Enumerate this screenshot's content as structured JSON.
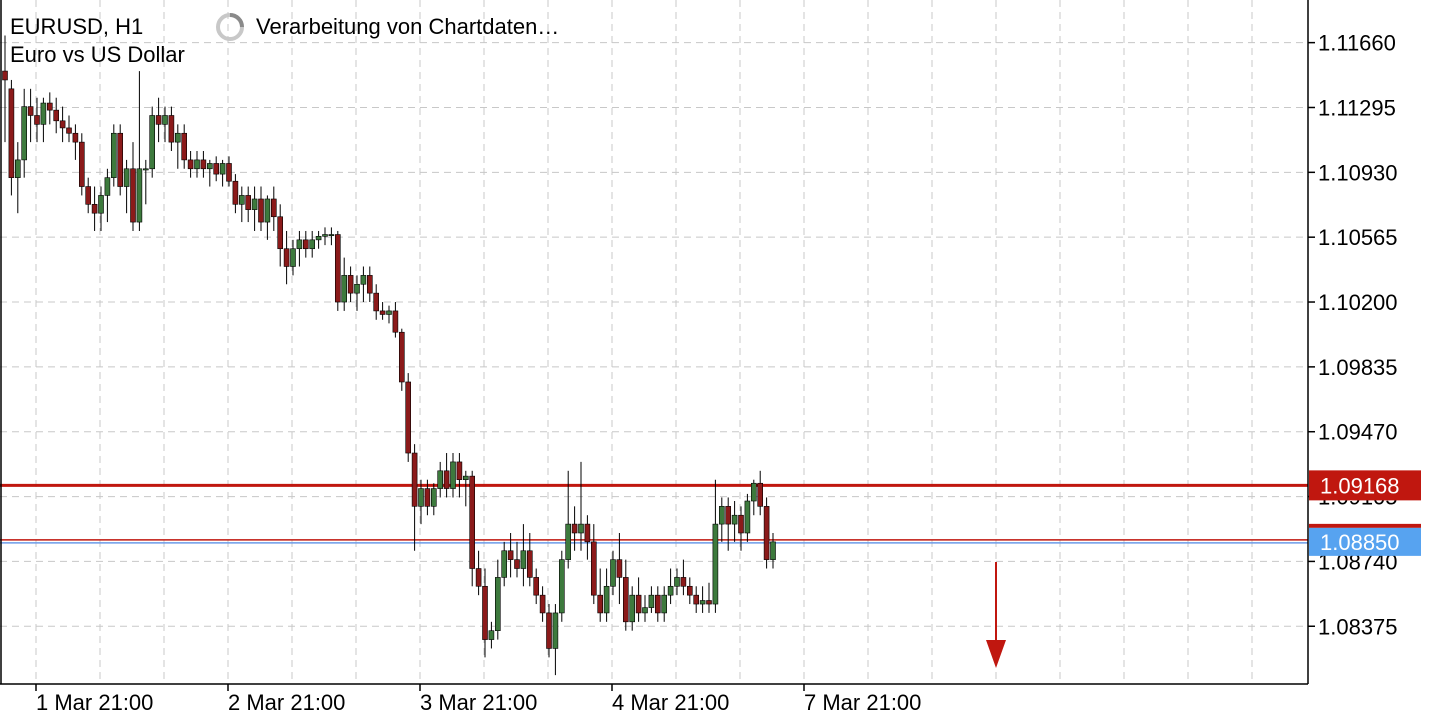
{
  "header": {
    "symbol_timeframe": "EURUSD, H1",
    "description": "Euro vs US Dollar",
    "status": "Verarbeitung von Chartdaten…"
  },
  "colors": {
    "bull": "#3d7a3d",
    "bear": "#8b1a1a",
    "wick": "#000000",
    "grid": "#c8c8c8",
    "sell_line": "#c0170f",
    "buy_line": "#6c9be8",
    "buy_badge": "#57a3f0",
    "arrow": "#c0170f"
  },
  "chart_data": {
    "type": "candlestick",
    "symbol": "EURUSD",
    "timeframe": "H1",
    "ylim": [
      1.0805,
      1.119
    ],
    "y_ticks": [
      "1.11660",
      "1.11295",
      "1.10930",
      "1.10565",
      "1.10200",
      "1.09835",
      "1.09470",
      "1.09105",
      "1.08740",
      "1.08375"
    ],
    "x_labels": [
      "1 Mar 21:00",
      "2 Mar 21:00",
      "3 Mar 21:00",
      "4 Mar 21:00",
      "7 Mar 21:00"
    ],
    "price_lines": [
      {
        "name": "bid",
        "value": "1.09168"
      },
      {
        "name": "ask",
        "value": "1.08850"
      }
    ],
    "arrow_direction": "down",
    "candles": [
      [
        1.115,
        1.117,
        1.111,
        1.1145
      ],
      [
        1.114,
        1.1145,
        1.108,
        1.109
      ],
      [
        1.109,
        1.111,
        1.107,
        1.11
      ],
      [
        1.11,
        1.114,
        1.109,
        1.113
      ],
      [
        1.113,
        1.114,
        1.111,
        1.1125
      ],
      [
        1.1125,
        1.1135,
        1.111,
        1.112
      ],
      [
        1.112,
        1.1135,
        1.111,
        1.1132
      ],
      [
        1.1132,
        1.1138,
        1.112,
        1.1128
      ],
      [
        1.1128,
        1.1135,
        1.1115,
        1.1122
      ],
      [
        1.1122,
        1.113,
        1.111,
        1.1118
      ],
      [
        1.1118,
        1.1125,
        1.111,
        1.1115
      ],
      [
        1.1115,
        1.112,
        1.11,
        1.111
      ],
      [
        1.111,
        1.1115,
        1.108,
        1.1085
      ],
      [
        1.1085,
        1.109,
        1.107,
        1.1075
      ],
      [
        1.1075,
        1.1085,
        1.106,
        1.107
      ],
      [
        1.107,
        1.1085,
        1.106,
        1.108
      ],
      [
        1.108,
        1.1095,
        1.1065,
        1.109
      ],
      [
        1.109,
        1.112,
        1.1085,
        1.1115
      ],
      [
        1.1115,
        1.112,
        1.108,
        1.1085
      ],
      [
        1.1085,
        1.11,
        1.107,
        1.1095
      ],
      [
        1.1095,
        1.111,
        1.106,
        1.1065
      ],
      [
        1.1065,
        1.115,
        1.106,
        1.1095
      ],
      [
        1.1095,
        1.11,
        1.1075,
        1.1095
      ],
      [
        1.1095,
        1.113,
        1.109,
        1.1125
      ],
      [
        1.1125,
        1.1135,
        1.111,
        1.112
      ],
      [
        1.112,
        1.113,
        1.111,
        1.1125
      ],
      [
        1.1125,
        1.113,
        1.1105,
        1.111
      ],
      [
        1.111,
        1.112,
        1.1095,
        1.1115
      ],
      [
        1.1115,
        1.112,
        1.1095,
        1.11
      ],
      [
        1.11,
        1.1105,
        1.109,
        1.1095
      ],
      [
        1.1095,
        1.1105,
        1.109,
        1.11
      ],
      [
        1.11,
        1.1105,
        1.109,
        1.1095
      ],
      [
        1.1095,
        1.11,
        1.1085,
        1.1098
      ],
      [
        1.1098,
        1.1102,
        1.1088,
        1.1092
      ],
      [
        1.1092,
        1.11,
        1.1085,
        1.1098
      ],
      [
        1.1098,
        1.1102,
        1.1085,
        1.1088
      ],
      [
        1.1088,
        1.1092,
        1.107,
        1.1075
      ],
      [
        1.1075,
        1.1085,
        1.1065,
        1.108
      ],
      [
        1.108,
        1.1085,
        1.1065,
        1.1072
      ],
      [
        1.1072,
        1.1085,
        1.106,
        1.1078
      ],
      [
        1.1078,
        1.1085,
        1.106,
        1.1065
      ],
      [
        1.1065,
        1.108,
        1.1055,
        1.1078
      ],
      [
        1.1078,
        1.1085,
        1.106,
        1.1068
      ],
      [
        1.1068,
        1.1075,
        1.104,
        1.105
      ],
      [
        1.105,
        1.106,
        1.103,
        1.104
      ],
      [
        1.104,
        1.1055,
        1.1035,
        1.105
      ],
      [
        1.105,
        1.106,
        1.104,
        1.1055
      ],
      [
        1.1055,
        1.106,
        1.1045,
        1.105
      ],
      [
        1.105,
        1.106,
        1.1045,
        1.1055
      ],
      [
        1.1055,
        1.106,
        1.105,
        1.1057
      ],
      [
        1.1057,
        1.1062,
        1.1052,
        1.1058
      ],
      [
        1.1058,
        1.1062,
        1.1052,
        1.1058
      ],
      [
        1.1058,
        1.106,
        1.1015,
        1.102
      ],
      [
        1.102,
        1.1045,
        1.1015,
        1.1035
      ],
      [
        1.1035,
        1.104,
        1.102,
        1.1025
      ],
      [
        1.1025,
        1.1035,
        1.1015,
        1.103
      ],
      [
        1.103,
        1.104,
        1.102,
        1.1035
      ],
      [
        1.1035,
        1.104,
        1.102,
        1.1025
      ],
      [
        1.1025,
        1.103,
        1.101,
        1.1015
      ],
      [
        1.1015,
        1.102,
        1.101,
        1.1013
      ],
      [
        1.1013,
        1.1018,
        1.1008,
        1.1015
      ],
      [
        1.1015,
        1.102,
        1.1,
        1.1003
      ],
      [
        1.1003,
        1.1005,
        1.097,
        1.0975
      ],
      [
        1.0975,
        1.098,
        1.093,
        1.0935
      ],
      [
        1.0935,
        1.094,
        1.088,
        1.0905
      ],
      [
        1.0905,
        1.092,
        1.0895,
        1.0915
      ],
      [
        1.0915,
        1.092,
        1.09,
        1.0905
      ],
      [
        1.0905,
        1.0918,
        1.09,
        1.0915
      ],
      [
        1.0915,
        1.093,
        1.091,
        1.0925
      ],
      [
        1.0925,
        1.0935,
        1.091,
        1.0915
      ],
      [
        1.0915,
        1.0935,
        1.091,
        1.093
      ],
      [
        1.093,
        1.0935,
        1.091,
        1.092
      ],
      [
        1.092,
        1.0925,
        1.0905,
        1.0922
      ],
      [
        1.0922,
        1.0925,
        1.086,
        1.087
      ],
      [
        1.087,
        1.088,
        1.0855,
        1.086
      ],
      [
        1.086,
        1.087,
        1.082,
        1.083
      ],
      [
        1.083,
        1.084,
        1.0825,
        1.0835
      ],
      [
        1.0835,
        1.0875,
        1.083,
        1.0865
      ],
      [
        1.0865,
        1.0885,
        1.086,
        1.088
      ],
      [
        1.088,
        1.089,
        1.0865,
        1.0875
      ],
      [
        1.0875,
        1.0885,
        1.0865,
        1.087
      ],
      [
        1.087,
        1.0895,
        1.086,
        1.088
      ],
      [
        1.088,
        1.089,
        1.086,
        1.0865
      ],
      [
        1.0865,
        1.087,
        1.085,
        1.0855
      ],
      [
        1.0855,
        1.086,
        1.084,
        1.0845
      ],
      [
        1.0845,
        1.085,
        1.082,
        1.0825
      ],
      [
        1.0825,
        1.085,
        1.081,
        1.0845
      ],
      [
        1.0845,
        1.088,
        1.084,
        1.0875
      ],
      [
        1.0875,
        1.0925,
        1.087,
        1.0895
      ],
      [
        1.0895,
        1.0905,
        1.088,
        1.089
      ],
      [
        1.089,
        1.093,
        1.088,
        1.0895
      ],
      [
        1.0895,
        1.09,
        1.0875,
        1.0885
      ],
      [
        1.0885,
        1.0895,
        1.085,
        1.0855
      ],
      [
        1.0855,
        1.087,
        1.084,
        1.0845
      ],
      [
        1.0845,
        1.087,
        1.084,
        1.086
      ],
      [
        1.086,
        1.088,
        1.0855,
        1.0875
      ],
      [
        1.0875,
        1.089,
        1.085,
        1.0865
      ],
      [
        1.0865,
        1.0875,
        1.0835,
        1.084
      ],
      [
        1.084,
        1.086,
        1.0835,
        1.0855
      ],
      [
        1.0855,
        1.0865,
        1.084,
        1.0845
      ],
      [
        1.0845,
        1.0855,
        1.084,
        1.0848
      ],
      [
        1.0848,
        1.086,
        1.0845,
        1.0855
      ],
      [
        1.0855,
        1.086,
        1.084,
        1.0845
      ],
      [
        1.0845,
        1.086,
        1.084,
        1.0855
      ],
      [
        1.0855,
        1.087,
        1.085,
        1.086
      ],
      [
        1.086,
        1.087,
        1.0855,
        1.0865
      ],
      [
        1.0865,
        1.0875,
        1.0855,
        1.086
      ],
      [
        1.086,
        1.0865,
        1.085,
        1.0855
      ],
      [
        1.0855,
        1.086,
        1.0845,
        1.085
      ],
      [
        1.085,
        1.086,
        1.0845,
        1.0852
      ],
      [
        1.0852,
        1.0862,
        1.0845,
        1.085
      ],
      [
        1.085,
        1.092,
        1.0845,
        1.0895
      ],
      [
        1.0895,
        1.091,
        1.0885,
        1.0905
      ],
      [
        1.0905,
        1.091,
        1.088,
        1.0895
      ],
      [
        1.0895,
        1.0908,
        1.0885,
        1.09
      ],
      [
        1.09,
        1.0905,
        1.088,
        1.089
      ],
      [
        1.089,
        1.0912,
        1.0885,
        1.0908
      ],
      [
        1.0908,
        1.092,
        1.09,
        1.0918
      ],
      [
        1.0918,
        1.0925,
        1.09,
        1.0905
      ],
      [
        1.0905,
        1.091,
        1.087,
        1.0875
      ],
      [
        1.0875,
        1.089,
        1.087,
        1.0885
      ]
    ]
  }
}
